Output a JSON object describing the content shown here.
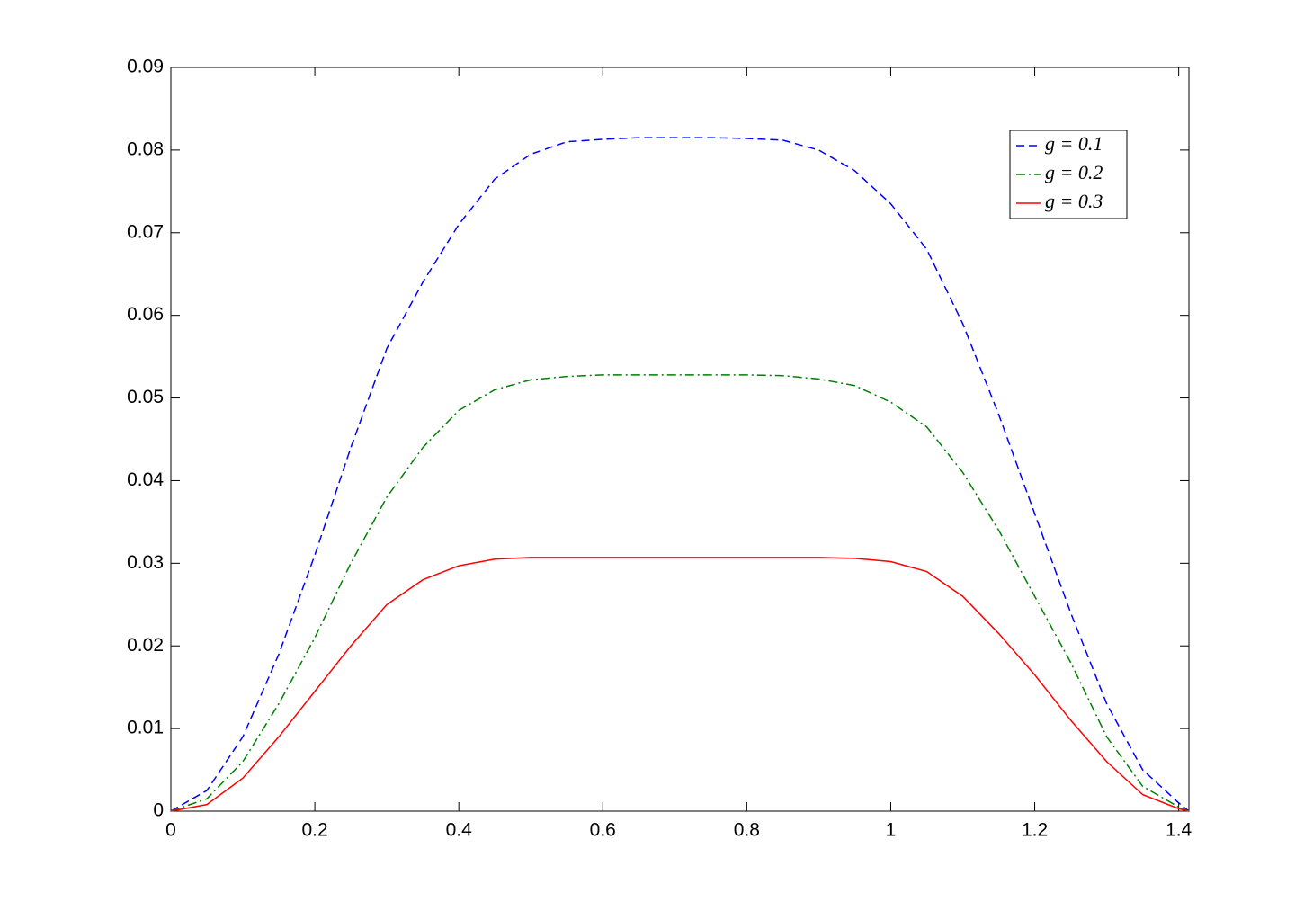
{
  "chart_data": {
    "type": "line",
    "x": [
      0,
      0.05,
      0.1,
      0.15,
      0.2,
      0.25,
      0.3,
      0.35,
      0.4,
      0.45,
      0.5,
      0.55,
      0.6,
      0.65,
      0.7,
      0.75,
      0.8,
      0.85,
      0.9,
      0.95,
      1.0,
      1.05,
      1.1,
      1.15,
      1.2,
      1.25,
      1.3,
      1.35,
      1.4,
      1.4142
    ],
    "series": [
      {
        "name": "g = 0.1",
        "color": "#0000ff",
        "dash": "dashed",
        "values": [
          0,
          0.0025,
          0.009,
          0.019,
          0.031,
          0.044,
          0.056,
          0.064,
          0.071,
          0.0765,
          0.0795,
          0.081,
          0.0813,
          0.0815,
          0.0815,
          0.0815,
          0.0814,
          0.0812,
          0.08,
          0.0775,
          0.0735,
          0.068,
          0.059,
          0.048,
          0.036,
          0.024,
          0.013,
          0.005,
          0.001,
          0
        ]
      },
      {
        "name": "g = 0.2",
        "color": "#007f00",
        "dash": "dashdot",
        "values": [
          0,
          0.0015,
          0.006,
          0.013,
          0.021,
          0.03,
          0.038,
          0.044,
          0.0485,
          0.051,
          0.0522,
          0.0526,
          0.0528,
          0.0528,
          0.0528,
          0.0528,
          0.0528,
          0.0527,
          0.0523,
          0.0515,
          0.0495,
          0.0465,
          0.041,
          0.034,
          0.026,
          0.018,
          0.009,
          0.003,
          0.0005,
          0
        ]
      },
      {
        "name": "g = 0.3",
        "color": "#ff0000",
        "dash": "solid",
        "values": [
          0,
          0.0008,
          0.004,
          0.009,
          0.0145,
          0.02,
          0.025,
          0.028,
          0.0297,
          0.0305,
          0.0307,
          0.0307,
          0.0307,
          0.0307,
          0.0307,
          0.0307,
          0.0307,
          0.0307,
          0.0307,
          0.0306,
          0.0302,
          0.029,
          0.026,
          0.0215,
          0.0165,
          0.011,
          0.006,
          0.002,
          0.0003,
          0
        ]
      }
    ],
    "xlim": [
      0,
      1.4142
    ],
    "xticks": [
      0,
      0.2,
      0.4,
      0.6,
      0.8,
      1,
      1.2,
      1.4
    ],
    "ylim": [
      0,
      0.09
    ],
    "yticks": [
      0,
      0.01,
      0.02,
      0.03,
      0.04,
      0.05,
      0.06,
      0.07,
      0.08,
      0.09
    ],
    "grid": false,
    "legend": "upper right"
  }
}
